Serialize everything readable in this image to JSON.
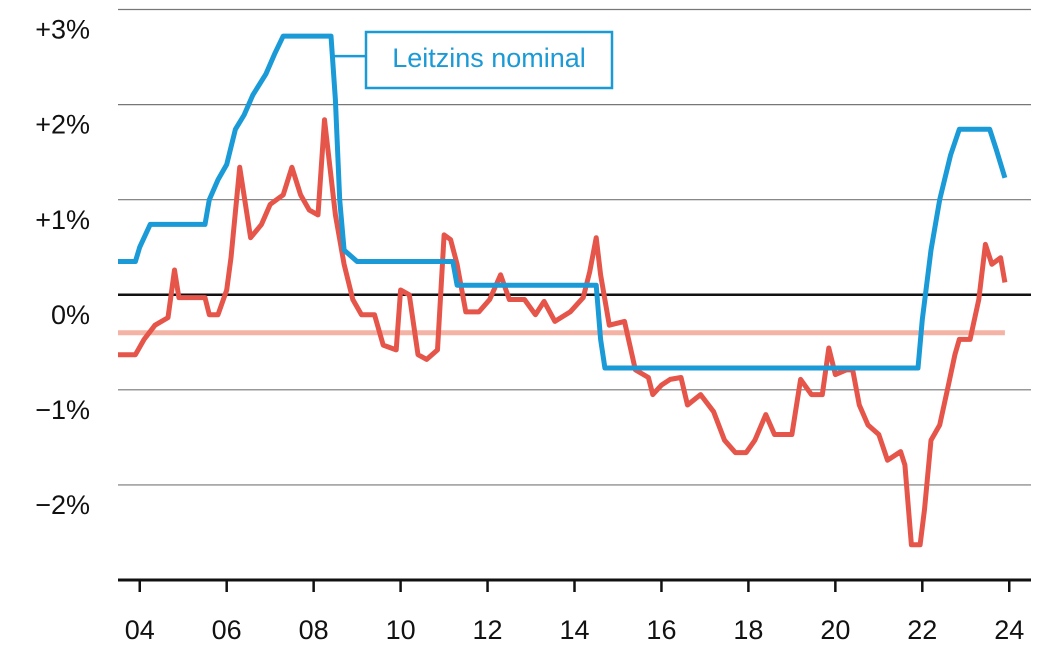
{
  "chart_data": {
    "type": "line",
    "series": [
      {
        "name": "Leitzins nominal",
        "color": "#1a9ad6",
        "x": [
          2003.5,
          2003.9,
          2004.0,
          2004.24,
          2005.5,
          2005.6,
          2005.8,
          2006.0,
          2006.2,
          2006.4,
          2006.6,
          2006.9,
          2007.1,
          2007.3,
          2008.4,
          2008.5,
          2008.6,
          2008.7,
          2009.0,
          2011.2,
          2011.3,
          2014.5,
          2014.6,
          2014.7,
          2021.9,
          2022.0,
          2022.2,
          2022.4,
          2022.65,
          2022.85,
          2023.55,
          2023.7,
          2023.9
        ],
        "values": [
          0.35,
          0.35,
          0.5,
          0.74,
          0.74,
          1.0,
          1.21,
          1.37,
          1.74,
          1.89,
          2.1,
          2.32,
          2.53,
          2.72,
          2.72,
          2.05,
          1.0,
          0.47,
          0.35,
          0.35,
          0.1,
          0.1,
          -0.47,
          -0.77,
          -0.77,
          -0.26,
          0.47,
          1.0,
          1.47,
          1.74,
          1.74,
          1.53,
          1.23
        ]
      },
      {
        "color": "#e5554a",
        "x": [
          2003.5,
          2003.9,
          2004.1,
          2004.35,
          2004.65,
          2004.8,
          2004.9,
          2005.5,
          2005.6,
          2005.8,
          2006.0,
          2006.1,
          2006.3,
          2006.55,
          2006.8,
          2007.0,
          2007.3,
          2007.5,
          2007.7,
          2007.9,
          2008.1,
          2008.25,
          2008.5,
          2008.7,
          2008.9,
          2009.1,
          2009.4,
          2009.6,
          2009.9,
          2010.0,
          2010.2,
          2010.4,
          2010.6,
          2010.85,
          2011.0,
          2011.15,
          2011.3,
          2011.5,
          2011.8,
          2012.05,
          2012.3,
          2012.5,
          2012.85,
          2013.1,
          2013.3,
          2013.55,
          2013.9,
          2014.2,
          2014.35,
          2014.5,
          2014.6,
          2014.8,
          2015.15,
          2015.4,
          2015.7,
          2015.8,
          2016.0,
          2016.2,
          2016.45,
          2016.6,
          2016.9,
          2017.2,
          2017.45,
          2017.7,
          2017.95,
          2018.15,
          2018.4,
          2018.6,
          2019.0,
          2019.2,
          2019.45,
          2019.7,
          2019.85,
          2020.0,
          2020.25,
          2020.4,
          2020.55,
          2020.75,
          2021.0,
          2021.2,
          2021.5,
          2021.6,
          2021.75,
          2021.95,
          2022.05,
          2022.2,
          2022.4,
          2022.6,
          2022.75,
          2022.85,
          2023.1,
          2023.3,
          2023.45,
          2023.6,
          2023.8,
          2023.9
        ],
        "values": [
          -0.63,
          -0.63,
          -0.47,
          -0.32,
          -0.24,
          0.26,
          -0.03,
          -0.03,
          -0.21,
          -0.21,
          0.05,
          0.39,
          1.34,
          0.6,
          0.74,
          0.95,
          1.05,
          1.34,
          1.05,
          0.89,
          0.84,
          1.84,
          0.84,
          0.32,
          -0.05,
          -0.21,
          -0.21,
          -0.53,
          -0.58,
          0.05,
          0.0,
          -0.63,
          -0.68,
          -0.58,
          0.63,
          0.58,
          0.32,
          -0.18,
          -0.18,
          -0.05,
          0.21,
          -0.05,
          -0.05,
          -0.21,
          -0.07,
          -0.28,
          -0.18,
          -0.03,
          0.24,
          0.6,
          0.21,
          -0.32,
          -0.28,
          -0.79,
          -0.87,
          -1.05,
          -0.95,
          -0.89,
          -0.87,
          -1.16,
          -1.05,
          -1.23,
          -1.53,
          -1.66,
          -1.66,
          -1.53,
          -1.26,
          -1.47,
          -1.47,
          -0.89,
          -1.05,
          -1.05,
          -0.56,
          -0.84,
          -0.79,
          -0.79,
          -1.16,
          -1.37,
          -1.47,
          -1.74,
          -1.65,
          -1.79,
          -2.63,
          -2.63,
          -2.26,
          -1.53,
          -1.37,
          -0.95,
          -0.63,
          -0.47,
          -0.47,
          -0.05,
          0.53,
          0.32,
          0.39,
          0.13
        ]
      }
    ],
    "reference_line": {
      "value": -0.4,
      "color": "#f4b3a4"
    },
    "xlim": [
      2003.5,
      2024.5
    ],
    "xticks": [
      {
        "value": 2004,
        "label": "04"
      },
      {
        "value": 2006,
        "label": "06"
      },
      {
        "value": 2008,
        "label": "08"
      },
      {
        "value": 2010,
        "label": "10"
      },
      {
        "value": 2012,
        "label": "12"
      },
      {
        "value": 2014,
        "label": "14"
      },
      {
        "value": 2016,
        "label": "16"
      },
      {
        "value": 2018,
        "label": "18"
      },
      {
        "value": 2020,
        "label": "20"
      },
      {
        "value": 2022,
        "label": "22"
      },
      {
        "value": 2024,
        "label": "24"
      }
    ],
    "ylim": [
      -3,
      3.1
    ],
    "yticks": [
      {
        "value": 3,
        "label": "+3%"
      },
      {
        "value": 2,
        "label": "+2%"
      },
      {
        "value": 1,
        "label": "+1%"
      },
      {
        "value": 0,
        "label": "0%"
      },
      {
        "value": -1,
        "label": "−1%"
      },
      {
        "value": -2,
        "label": "−2%"
      }
    ],
    "grid": true
  }
}
